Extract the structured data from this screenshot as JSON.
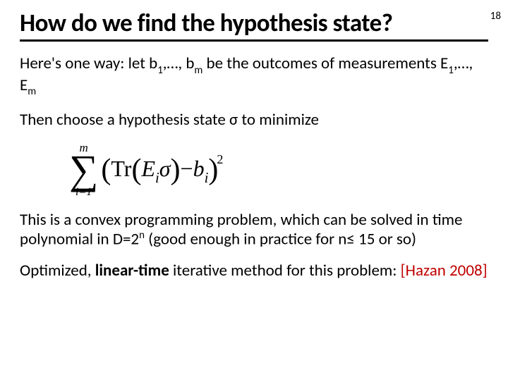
{
  "page_number": "18",
  "title": "How do we find the hypothesis state?",
  "p1_a": "Here's one way: let b",
  "p1_b": ",…, b",
  "p1_c": " be the outcomes of measurements E",
  "p1_d": ",…, E",
  "sub1": "1",
  "subm": "m",
  "p2_a": "Then choose a hypothesis state ",
  "sigma": "σ",
  "p2_b": " to minimize",
  "formula": {
    "upper": "m",
    "lower": "i=1",
    "tr": "Tr",
    "E": "E",
    "Ei": "i",
    "sig": "σ",
    "minus": "−",
    "b": "b",
    "bi": "i",
    "exp": "2"
  },
  "p3_a": "This is a convex programming problem, which can be solved in time polynomial in D=2",
  "supn": "n",
  "p3_b": " (good enough in practice for n",
  "leq": "≤",
  "p3_c": " 15 or so)",
  "p4_a": "Optimized, ",
  "p4_b": "linear-time",
  "p4_c": " iterative method for this problem: ",
  "p4_ref": "[Hazan 2008]",
  "colors": {
    "text": "#000000",
    "ref": "#c00000",
    "bg": "#ffffff"
  }
}
